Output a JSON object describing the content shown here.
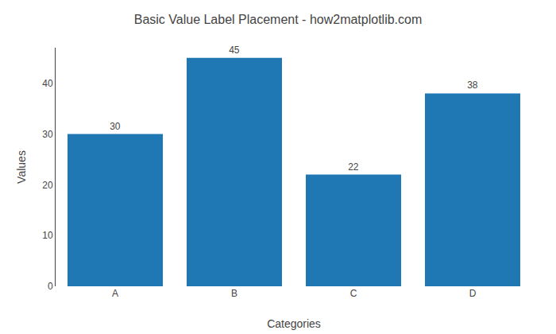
{
  "chart_data": {
    "type": "bar",
    "title": "Basic Value Label Placement - how2matplotlib.com",
    "xlabel": "Categories",
    "ylabel": "Values",
    "categories": [
      "A",
      "B",
      "C",
      "D"
    ],
    "values": [
      30,
      45,
      22,
      38
    ],
    "color": "#1f77b4",
    "ylim": [
      0,
      47
    ],
    "yticks": [
      0,
      10,
      20,
      30,
      40
    ],
    "grid": false,
    "data_labels": true
  }
}
